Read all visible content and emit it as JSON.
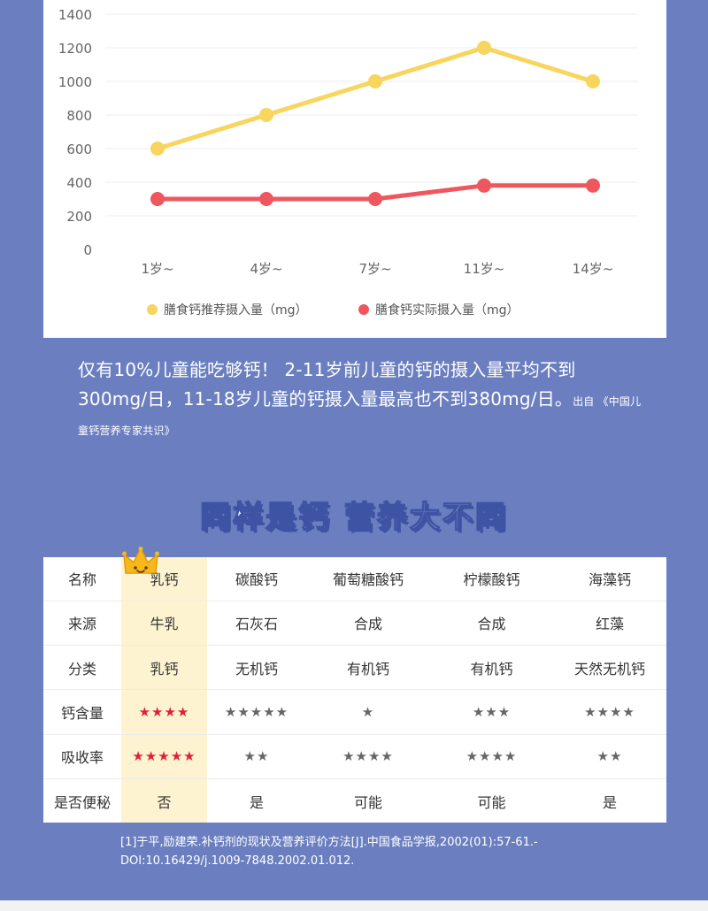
{
  "chart_data": {
    "type": "line",
    "categories": [
      "1岁~",
      "4岁~",
      "7岁~",
      "11岁~",
      "14岁~"
    ],
    "series": [
      {
        "name": "膳食钙推荐摄入量（mg）",
        "values": [
          600,
          800,
          1000,
          1200,
          1000
        ],
        "color": "#f8d55e"
      },
      {
        "name": "膳食钙实际摄入量（mg）",
        "values": [
          300,
          300,
          300,
          380,
          380
        ],
        "color": "#ee575e"
      }
    ],
    "yticks": [
      0,
      200,
      400,
      600,
      800,
      1000,
      1200,
      1400
    ],
    "ylim": [
      0,
      1400
    ],
    "grid": true,
    "legend": "bottom"
  },
  "note": {
    "main": "仅有10%儿童能吃够钙！ 2-11岁前儿童的钙的摄入量平均不到300mg/日，11-18岁儿童的钙摄入量最高也不到380mg/日。",
    "source": "出自 《中国儿童钙营养专家共识》"
  },
  "heading": "同样是钙 营养大不同",
  "table": {
    "highlight_color": "#fdf3d0",
    "highlight_star_color": "#e0203a",
    "rows": [
      [
        "名称",
        "乳钙",
        "碳酸钙",
        "葡萄糖酸钙",
        "柠檬酸钙",
        "海藻钙"
      ],
      [
        "来源",
        "牛乳",
        "石灰石",
        "合成",
        "合成",
        "红藻"
      ],
      [
        "分类",
        "乳钙",
        "无机钙",
        "有机钙",
        "有机钙",
        "天然无机钙"
      ],
      [
        "钙含量",
        "★★★★",
        "★★★★★",
        "★",
        "★★★",
        "★★★★"
      ],
      [
        "吸收率",
        "★★★★★",
        "★★",
        "★★★★",
        "★★★★",
        "★★"
      ],
      [
        "是否便秘",
        "否",
        "是",
        "可能",
        "可能",
        "是"
      ]
    ]
  },
  "reference": "[1]于平,励建荣.补钙剂的现状及营养评价方法[J].中国食品学报,2002(01):57-61.-DOI:10.16429/j.1009-7848.2002.01.012."
}
